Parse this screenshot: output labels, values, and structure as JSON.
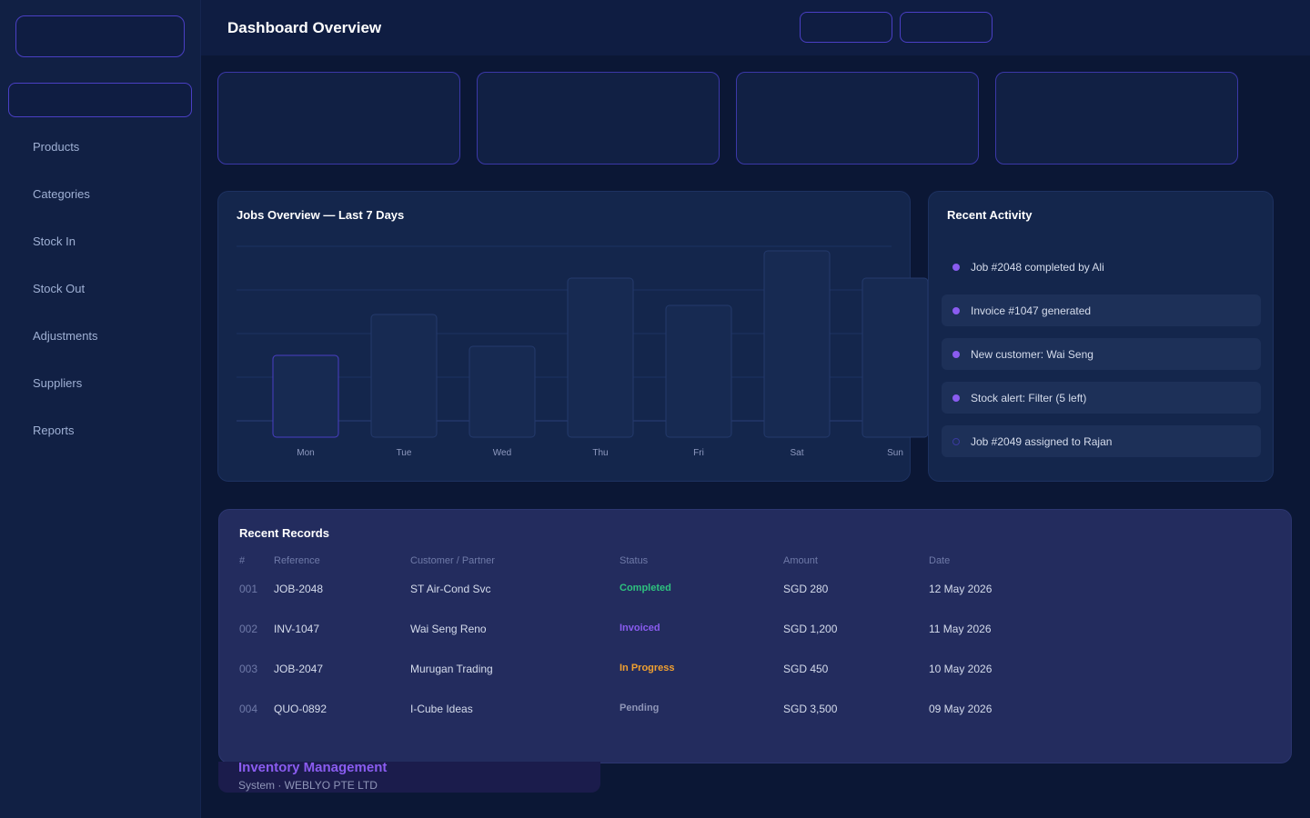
{
  "header": {
    "title": "Dashboard Overview"
  },
  "sidebar": {
    "items": [
      {
        "label": "Products"
      },
      {
        "label": "Categories"
      },
      {
        "label": "Stock In"
      },
      {
        "label": "Stock Out"
      },
      {
        "label": "Adjustments"
      },
      {
        "label": "Suppliers"
      },
      {
        "label": "Reports"
      }
    ]
  },
  "chart_panel": {
    "title": "Jobs Overview — Last 7 Days"
  },
  "chart_data": {
    "type": "bar",
    "title": "Jobs Overview — Last 7 Days",
    "categories": [
      "Mon",
      "Tue",
      "Wed",
      "Thu",
      "Fri",
      "Sat",
      "Sun"
    ],
    "values": [
      18,
      27,
      20,
      35,
      29,
      41,
      35
    ],
    "ylim": [
      0,
      42
    ],
    "grid": true
  },
  "activity": {
    "title": "Recent Activity",
    "items": [
      {
        "text": "Job #2048 completed by Ali"
      },
      {
        "text": "Invoice #1047 generated"
      },
      {
        "text": "New customer: Wai Seng"
      },
      {
        "text": "Stock alert: Filter (5 left)"
      },
      {
        "text": "Job #2049 assigned to Rajan"
      }
    ]
  },
  "records": {
    "title": "Recent Records",
    "columns": [
      "#",
      "Reference",
      "Customer / Partner",
      "Status",
      "Amount",
      "Date"
    ],
    "rows": [
      {
        "idx": "001",
        "ref": "JOB-2048",
        "customer": "ST Air-Cond Svc",
        "status": "Completed",
        "amount": "SGD 280",
        "date": "12 May 2026"
      },
      {
        "idx": "002",
        "ref": "INV-1047",
        "customer": "Wai Seng Reno",
        "status": "Invoiced",
        "amount": "SGD 1,200",
        "date": "11 May 2026"
      },
      {
        "idx": "003",
        "ref": "JOB-2047",
        "customer": "Murugan Trading",
        "status": "In Progress",
        "amount": "SGD 450",
        "date": "10 May 2026"
      },
      {
        "idx": "004",
        "ref": "QUO-0892",
        "customer": "I-Cube Ideas",
        "status": "Pending",
        "amount": "SGD 3,500",
        "date": "09 May 2026"
      }
    ]
  },
  "status_colors": {
    "Completed": "#2ec27e",
    "Invoiced": "#8a5cf0",
    "In Progress": "#f0a030",
    "Pending": "#8f96b8"
  },
  "brand": {
    "name": "Inventory Management",
    "subtitle": "System · WEBLYO PTE LTD"
  }
}
